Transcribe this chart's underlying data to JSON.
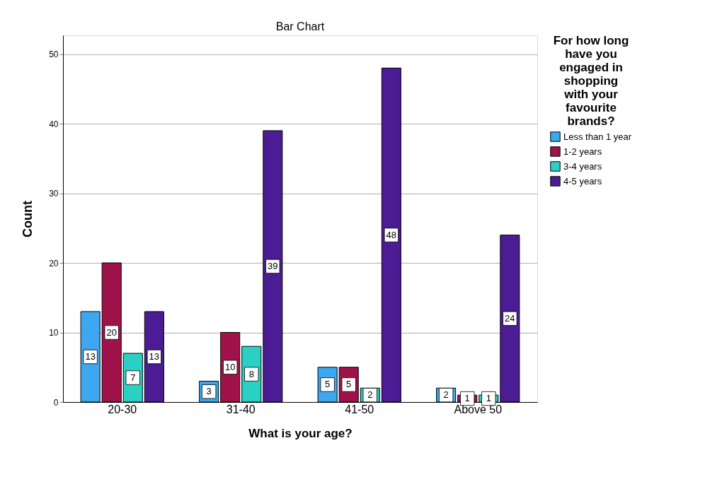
{
  "chart_data": {
    "type": "bar",
    "title": "Bar Chart",
    "xlabel": "What is your age?",
    "ylabel": "Count",
    "legend_title": "For how long have you engaged in shopping with your favourite brands?",
    "categories": [
      "20-30",
      "31-40",
      "41-50",
      "Above 50"
    ],
    "series": [
      {
        "name": "Less than 1 year",
        "color": "#3da7f0",
        "values": [
          13,
          3,
          5,
          2
        ]
      },
      {
        "name": "1-2 years",
        "color": "#a0124a",
        "values": [
          20,
          10,
          5,
          1
        ]
      },
      {
        "name": "3-4 years",
        "color": "#2ad0c4",
        "values": [
          7,
          8,
          2,
          1
        ]
      },
      {
        "name": "4-5 years",
        "color": "#4b1c93",
        "values": [
          13,
          39,
          48,
          24
        ]
      }
    ],
    "ylim": [
      0,
      52.7
    ],
    "yticks": [
      0,
      10,
      20,
      30,
      40,
      50
    ],
    "grid": "y",
    "legend": "right",
    "data_labels": true
  }
}
